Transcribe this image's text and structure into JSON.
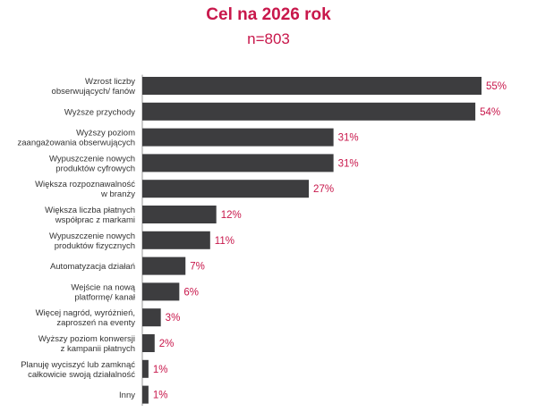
{
  "chart_data": {
    "type": "bar",
    "orientation": "horizontal",
    "title": "Cel na 2026 rok",
    "subtitle": "n=803",
    "categories": [
      [
        "Wzrost liczby",
        "obserwujących/ fanów"
      ],
      [
        "Wyższe przychody"
      ],
      [
        "Wyższy poziom",
        "zaangażowania obserwujących"
      ],
      [
        "Wypuszczenie nowych",
        "produktów cyfrowych"
      ],
      [
        "Większa rozpoznawalność",
        "w branży"
      ],
      [
        "Większa liczba płatnych",
        "współprac z markami"
      ],
      [
        "Wypuszczenie nowych",
        "produktów fizycznych"
      ],
      [
        "Automatyzacja działań"
      ],
      [
        "Wejście na nową",
        "platformę/ kanał"
      ],
      [
        "Więcej nagród, wyróżnień,",
        "zaproszeń na eventy"
      ],
      [
        "Wyższy poziom konwersji",
        "z kampanii płatnych"
      ],
      [
        "Planuję wyciszyć lub zamknąć",
        "całkowicie swoją działalność"
      ],
      [
        "Inny"
      ]
    ],
    "values": [
      55,
      54,
      31,
      31,
      27,
      12,
      11,
      7,
      6,
      3,
      2,
      1,
      1
    ],
    "value_labels": [
      "55%",
      "54%",
      "31%",
      "31%",
      "27%",
      "12%",
      "11%",
      "7%",
      "6%",
      "3%",
      "2%",
      "1%",
      "1%"
    ],
    "xlim": [
      0,
      55
    ],
    "grid": false,
    "legend": "none",
    "colors": {
      "bar": "#3d3d3f",
      "accent": "#c8174b",
      "label": "#333333"
    }
  }
}
